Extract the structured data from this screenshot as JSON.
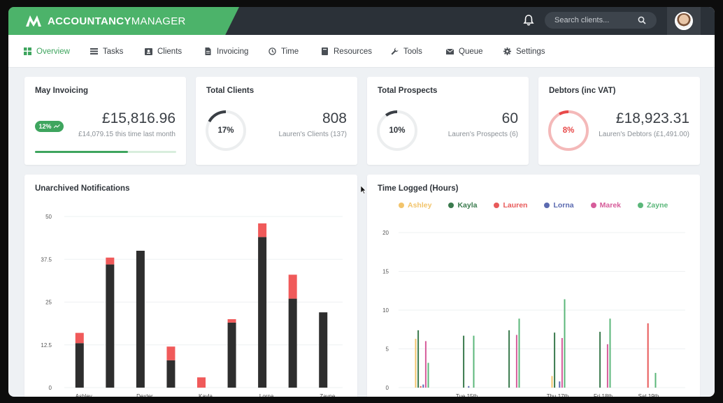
{
  "app": {
    "brand_bold": "ACCOUNTANCY",
    "brand_rest": "MANAGER"
  },
  "search": {
    "placeholder": "Search clients..."
  },
  "nav": [
    {
      "label": "Overview",
      "icon": "dashboard-icon",
      "active": true
    },
    {
      "label": "Tasks",
      "icon": "list-icon"
    },
    {
      "label": "Clients",
      "icon": "id-card-icon"
    },
    {
      "label": "Invoicing",
      "icon": "document-icon"
    },
    {
      "label": "Time",
      "icon": "clock-icon"
    },
    {
      "label": "Resources",
      "icon": "book-icon"
    },
    {
      "label": "Tools",
      "icon": "wrench-icon"
    },
    {
      "label": "Queue",
      "icon": "envelope-icon"
    },
    {
      "label": "Settings",
      "icon": "gear-icon"
    }
  ],
  "colors": {
    "accent": "#3ea55e",
    "danger": "#e84a4a",
    "dark_bar": "#2e2e2e",
    "red_bar": "#f05a5a"
  },
  "cards": {
    "invoicing": {
      "title": "May Invoicing",
      "amount": "£15,816.96",
      "sub": "£14,079.15 this time last month",
      "badge": "12%",
      "progress": 0.66
    },
    "clients": {
      "title": "Total Clients",
      "percent_label": "17%",
      "percent": 0.17,
      "count": "808",
      "sub": "Lauren's Clients (137)"
    },
    "prospects": {
      "title": "Total Prospects",
      "percent_label": "10%",
      "percent": 0.1,
      "count": "60",
      "sub": "Lauren's Prospects (6)"
    },
    "debtors": {
      "title": "Debtors (inc VAT)",
      "percent_label": "8%",
      "percent": 0.08,
      "amount": "£18,923.31",
      "sub": "Lauren's Debtors (£1,491.00)"
    }
  },
  "panels": {
    "notifications_title": "Unarchived Notifications",
    "time_title": "Time Logged (Hours)"
  },
  "chart_data": [
    {
      "type": "bar",
      "title": "Unarchived Notifications",
      "stacked": true,
      "ylim": [
        0,
        50
      ],
      "yticks": [
        "0",
        "12.5",
        "25",
        "37.5",
        "50"
      ],
      "categories": [
        "Ashley",
        "",
        "Dexter",
        "",
        "Kayla",
        "",
        "Lorna",
        "",
        "Zayne"
      ],
      "x_labels_shown": [
        "Ashley",
        "Dexter",
        "Kayla",
        "Lorna",
        "Zayne"
      ],
      "series": [
        {
          "values": [
            13,
            36,
            40,
            8,
            0,
            19,
            44,
            26,
            22
          ]
        },
        {
          "values": [
            3,
            2,
            0,
            4,
            3,
            1,
            4,
            7,
            0
          ]
        }
      ]
    },
    {
      "type": "bar",
      "title": "Time Logged (Hours)",
      "ylim": [
        0,
        20
      ],
      "yticks": [
        "0",
        "5",
        "10",
        "15",
        "20"
      ],
      "x_labels": [
        "",
        "Tue 15th",
        "",
        "Thu 17th",
        "Fri 18th",
        "Sat 19th"
      ],
      "series": [
        {
          "name": "Ashley",
          "color": "#f2c46b",
          "values": [
            6.3,
            0,
            0,
            1.5,
            0,
            0
          ]
        },
        {
          "name": "Kayla",
          "color": "#3a7a4d",
          "values": [
            7.4,
            6.7,
            7.4,
            7.1,
            7.2,
            0
          ]
        },
        {
          "name": "Lauren",
          "color": "#e85a5a",
          "values": [
            0.2,
            0,
            0,
            0,
            0,
            8.3
          ]
        },
        {
          "name": "Lorna",
          "color": "#5b6ab0",
          "values": [
            0.4,
            0.2,
            0,
            0.8,
            0,
            0
          ]
        },
        {
          "name": "Marek",
          "color": "#d65c9a",
          "values": [
            6.0,
            0,
            6.8,
            6.4,
            5.6,
            0
          ]
        },
        {
          "name": "Zayne",
          "color": "#5bb77a",
          "values": [
            3.2,
            6.7,
            8.9,
            11.4,
            8.9,
            1.9
          ]
        }
      ]
    }
  ]
}
